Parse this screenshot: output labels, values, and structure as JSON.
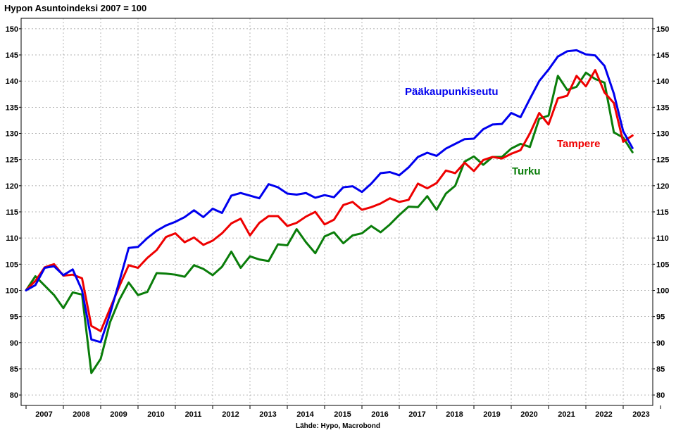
{
  "title": "Hypon Asuntoindeksi 2007 = 100",
  "source": "Lähde: Hypo, Macrobond",
  "chart_data": {
    "type": "line",
    "title": "Hypon Asuntoindeksi 2007 = 100",
    "ylim": [
      78,
      152
    ],
    "y_ticks": [
      80,
      85,
      90,
      95,
      100,
      105,
      110,
      115,
      120,
      125,
      130,
      135,
      140,
      145,
      150
    ],
    "x_year_labels": [
      "2007",
      "2008",
      "2009",
      "2010",
      "2011",
      "2012",
      "2013",
      "2014",
      "2015",
      "2016",
      "2017",
      "2018",
      "2019",
      "2020",
      "2021",
      "2022",
      "2023"
    ],
    "x_start": "2007Q1",
    "x_step": "quarter",
    "grid": true,
    "right_axis": true,
    "series": [
      {
        "name": "Pääkaupunkiseutu",
        "color": "#0000ee",
        "values": [
          100.0,
          101.0,
          104.3,
          104.6,
          102.9,
          104.0,
          100.0,
          90.6,
          90.1,
          95.5,
          101.7,
          108.1,
          108.3,
          110.0,
          111.4,
          112.4,
          113.1,
          114.0,
          115.3,
          114.0,
          115.6,
          114.8,
          118.1,
          118.6,
          118.1,
          117.6,
          120.3,
          119.7,
          118.5,
          118.3,
          118.6,
          117.7,
          118.2,
          117.8,
          119.7,
          119.9,
          118.8,
          120.4,
          122.4,
          122.6,
          122.0,
          123.5,
          125.5,
          126.3,
          125.7,
          127.1,
          128.0,
          128.9,
          129.0,
          130.8,
          131.7,
          131.8,
          133.9,
          133.1,
          136.6,
          140.0,
          142.2,
          144.7,
          145.7,
          145.9,
          145.1,
          144.9,
          142.9,
          137.6,
          130.4,
          127.2
        ]
      },
      {
        "name": "Tampere",
        "color": "#ee0000",
        "values": [
          100.0,
          101.8,
          104.4,
          105.0,
          102.8,
          103.0,
          102.3,
          93.2,
          92.2,
          96.5,
          100.8,
          104.8,
          104.3,
          106.2,
          107.7,
          110.2,
          110.9,
          109.2,
          110.1,
          108.7,
          109.5,
          110.9,
          112.8,
          113.7,
          110.5,
          112.9,
          114.2,
          114.2,
          112.3,
          112.9,
          114.1,
          115.0,
          112.6,
          113.5,
          116.3,
          116.9,
          115.4,
          115.9,
          116.6,
          117.6,
          116.9,
          117.3,
          120.4,
          119.5,
          120.5,
          122.9,
          122.4,
          124.4,
          122.8,
          124.9,
          125.5,
          125.2,
          126.1,
          126.8,
          130.0,
          133.9,
          131.7,
          136.7,
          137.2,
          141.0,
          139.0,
          142.1,
          137.8,
          135.8,
          128.4,
          129.6
        ]
      },
      {
        "name": "Turku",
        "color": "#0a7d0a",
        "values": [
          100.0,
          102.7,
          100.9,
          99.1,
          96.6,
          99.6,
          99.2,
          84.2,
          86.9,
          93.9,
          98.2,
          101.5,
          99.1,
          99.7,
          103.3,
          103.2,
          103.0,
          102.6,
          104.8,
          104.1,
          102.9,
          104.5,
          107.4,
          104.3,
          106.5,
          105.9,
          105.6,
          108.8,
          108.6,
          111.7,
          109.2,
          107.1,
          110.3,
          111.1,
          109.0,
          110.5,
          110.9,
          112.3,
          111.1,
          112.6,
          114.4,
          116.0,
          115.9,
          118.0,
          115.4,
          118.5,
          120.0,
          124.6,
          125.6,
          124.0,
          125.5,
          125.5,
          127.1,
          128.0,
          127.4,
          132.8,
          133.4,
          141.0,
          138.3,
          138.9,
          141.6,
          140.4,
          139.7,
          130.2,
          129.2,
          126.4
        ]
      }
    ],
    "annotations": [
      {
        "text": "Pääkaupunkiseutu",
        "series": "Pääkaupunkiseutu"
      },
      {
        "text": "Tampere",
        "series": "Tampere"
      },
      {
        "text": "Turku",
        "series": "Turku"
      }
    ]
  }
}
